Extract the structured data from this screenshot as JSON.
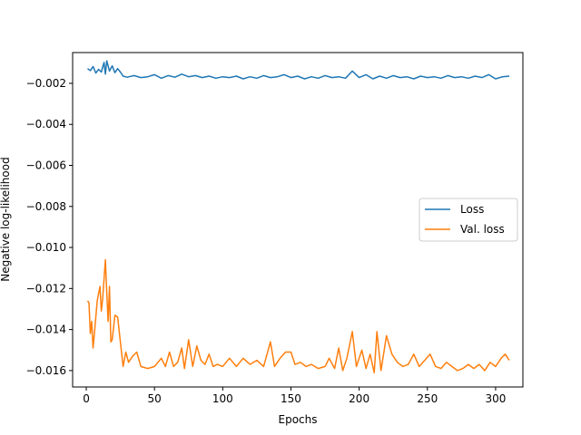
{
  "chart_data": {
    "type": "line",
    "title": "",
    "xlabel": "Epochs",
    "ylabel": "Negative log-likelihood",
    "xlim": [
      -10,
      320
    ],
    "ylim": [
      -0.0168,
      -0.0005
    ],
    "xticks": [
      0,
      50,
      100,
      150,
      200,
      250,
      300
    ],
    "xtick_labels": [
      "0",
      "50",
      "100",
      "150",
      "200",
      "250",
      "300"
    ],
    "yticks": [
      -0.002,
      -0.004,
      -0.006,
      -0.008,
      -0.01,
      -0.012,
      -0.014,
      -0.016
    ],
    "ytick_labels": [
      "−0.002",
      "−0.004",
      "−0.006",
      "−0.008",
      "−0.010",
      "−0.012",
      "−0.014",
      "−0.016"
    ],
    "grid": false,
    "legend_position": "center-right",
    "series": [
      {
        "name": "Loss",
        "color": "#1f77b4",
        "points": [
          [
            1,
            -0.00128
          ],
          [
            3,
            -0.00138
          ],
          [
            5,
            -0.00118
          ],
          [
            7,
            -0.0015
          ],
          [
            9,
            -0.00132
          ],
          [
            11,
            -0.00145
          ],
          [
            13,
            -0.00098
          ],
          [
            14,
            -0.00155
          ],
          [
            15,
            -0.0009
          ],
          [
            17,
            -0.0014
          ],
          [
            19,
            -0.00115
          ],
          [
            21,
            -0.00148
          ],
          [
            23,
            -0.00128
          ],
          [
            25,
            -0.00145
          ],
          [
            27,
            -0.00165
          ],
          [
            30,
            -0.0017
          ],
          [
            35,
            -0.00162
          ],
          [
            40,
            -0.00172
          ],
          [
            45,
            -0.00168
          ],
          [
            50,
            -0.00158
          ],
          [
            55,
            -0.00175
          ],
          [
            60,
            -0.00162
          ],
          [
            65,
            -0.0017
          ],
          [
            70,
            -0.00155
          ],
          [
            75,
            -0.00168
          ],
          [
            80,
            -0.00162
          ],
          [
            85,
            -0.00172
          ],
          [
            90,
            -0.00165
          ],
          [
            95,
            -0.00175
          ],
          [
            100,
            -0.00168
          ],
          [
            105,
            -0.00172
          ],
          [
            110,
            -0.00165
          ],
          [
            115,
            -0.00178
          ],
          [
            120,
            -0.00168
          ],
          [
            125,
            -0.00175
          ],
          [
            130,
            -0.00162
          ],
          [
            135,
            -0.00172
          ],
          [
            140,
            -0.00168
          ],
          [
            145,
            -0.00158
          ],
          [
            150,
            -0.00172
          ],
          [
            155,
            -0.00165
          ],
          [
            160,
            -0.00178
          ],
          [
            165,
            -0.00168
          ],
          [
            170,
            -0.00175
          ],
          [
            175,
            -0.00162
          ],
          [
            180,
            -0.00172
          ],
          [
            185,
            -0.00168
          ],
          [
            190,
            -0.00175
          ],
          [
            195,
            -0.0014
          ],
          [
            200,
            -0.00172
          ],
          [
            205,
            -0.00158
          ],
          [
            210,
            -0.00178
          ],
          [
            215,
            -0.00165
          ],
          [
            220,
            -0.00175
          ],
          [
            225,
            -0.00162
          ],
          [
            230,
            -0.00172
          ],
          [
            235,
            -0.00168
          ],
          [
            240,
            -0.00178
          ],
          [
            245,
            -0.00165
          ],
          [
            250,
            -0.00172
          ],
          [
            255,
            -0.00168
          ],
          [
            260,
            -0.00175
          ],
          [
            265,
            -0.00162
          ],
          [
            270,
            -0.00172
          ],
          [
            275,
            -0.00168
          ],
          [
            280,
            -0.00175
          ],
          [
            285,
            -0.00165
          ],
          [
            290,
            -0.00172
          ],
          [
            295,
            -0.00158
          ],
          [
            300,
            -0.00178
          ],
          [
            305,
            -0.00168
          ],
          [
            310,
            -0.00165
          ]
        ]
      },
      {
        "name": "Val. loss",
        "color": "#ff7f0e",
        "points": [
          [
            1,
            -0.0126
          ],
          [
            2,
            -0.0127
          ],
          [
            3,
            -0.0142
          ],
          [
            4,
            -0.0136
          ],
          [
            5,
            -0.0149
          ],
          [
            6,
            -0.0142
          ],
          [
            8,
            -0.0126
          ],
          [
            10,
            -0.0119
          ],
          [
            11,
            -0.0131
          ],
          [
            12,
            -0.0125
          ],
          [
            14,
            -0.0106
          ],
          [
            15,
            -0.0122
          ],
          [
            16,
            -0.0136
          ],
          [
            17,
            -0.0119
          ],
          [
            18,
            -0.0146
          ],
          [
            19,
            -0.0145
          ],
          [
            21,
            -0.0133
          ],
          [
            23,
            -0.0134
          ],
          [
            25,
            -0.0146
          ],
          [
            27,
            -0.0158
          ],
          [
            29,
            -0.0151
          ],
          [
            31,
            -0.0156
          ],
          [
            34,
            -0.0153
          ],
          [
            37,
            -0.0151
          ],
          [
            40,
            -0.0158
          ],
          [
            45,
            -0.0159
          ],
          [
            50,
            -0.0158
          ],
          [
            55,
            -0.0154
          ],
          [
            58,
            -0.0158
          ],
          [
            61,
            -0.0151
          ],
          [
            64,
            -0.0158
          ],
          [
            67,
            -0.0156
          ],
          [
            70,
            -0.0149
          ],
          [
            72,
            -0.0159
          ],
          [
            75,
            -0.0145
          ],
          [
            78,
            -0.0158
          ],
          [
            81,
            -0.0148
          ],
          [
            84,
            -0.0155
          ],
          [
            87,
            -0.0157
          ],
          [
            90,
            -0.0152
          ],
          [
            93,
            -0.0158
          ],
          [
            96,
            -0.0157
          ],
          [
            100,
            -0.0158
          ],
          [
            105,
            -0.0154
          ],
          [
            110,
            -0.0158
          ],
          [
            115,
            -0.0154
          ],
          [
            120,
            -0.0157
          ],
          [
            125,
            -0.0155
          ],
          [
            130,
            -0.0158
          ],
          [
            135,
            -0.0146
          ],
          [
            138,
            -0.0158
          ],
          [
            142,
            -0.0154
          ],
          [
            146,
            -0.0151
          ],
          [
            150,
            -0.0151
          ],
          [
            153,
            -0.0157
          ],
          [
            157,
            -0.0156
          ],
          [
            161,
            -0.0158
          ],
          [
            165,
            -0.0157
          ],
          [
            170,
            -0.0159
          ],
          [
            175,
            -0.0158
          ],
          [
            178,
            -0.0154
          ],
          [
            182,
            -0.0159
          ],
          [
            185,
            -0.0149
          ],
          [
            188,
            -0.016
          ],
          [
            191,
            -0.0154
          ],
          [
            195,
            -0.0141
          ],
          [
            198,
            -0.0158
          ],
          [
            202,
            -0.015
          ],
          [
            205,
            -0.0159
          ],
          [
            208,
            -0.0152
          ],
          [
            211,
            -0.0161
          ],
          [
            213,
            -0.0141
          ],
          [
            216,
            -0.016
          ],
          [
            220,
            -0.0143
          ],
          [
            224,
            -0.0152
          ],
          [
            228,
            -0.0156
          ],
          [
            232,
            -0.0158
          ],
          [
            236,
            -0.0157
          ],
          [
            240,
            -0.0152
          ],
          [
            244,
            -0.0158
          ],
          [
            248,
            -0.0155
          ],
          [
            252,
            -0.0152
          ],
          [
            256,
            -0.0158
          ],
          [
            260,
            -0.0159
          ],
          [
            264,
            -0.0156
          ],
          [
            268,
            -0.0158
          ],
          [
            272,
            -0.016
          ],
          [
            276,
            -0.0159
          ],
          [
            280,
            -0.0157
          ],
          [
            284,
            -0.0159
          ],
          [
            288,
            -0.0157
          ],
          [
            292,
            -0.016
          ],
          [
            296,
            -0.0156
          ],
          [
            300,
            -0.0158
          ],
          [
            304,
            -0.0154
          ],
          [
            307,
            -0.0152
          ],
          [
            310,
            -0.0155
          ]
        ]
      }
    ]
  }
}
